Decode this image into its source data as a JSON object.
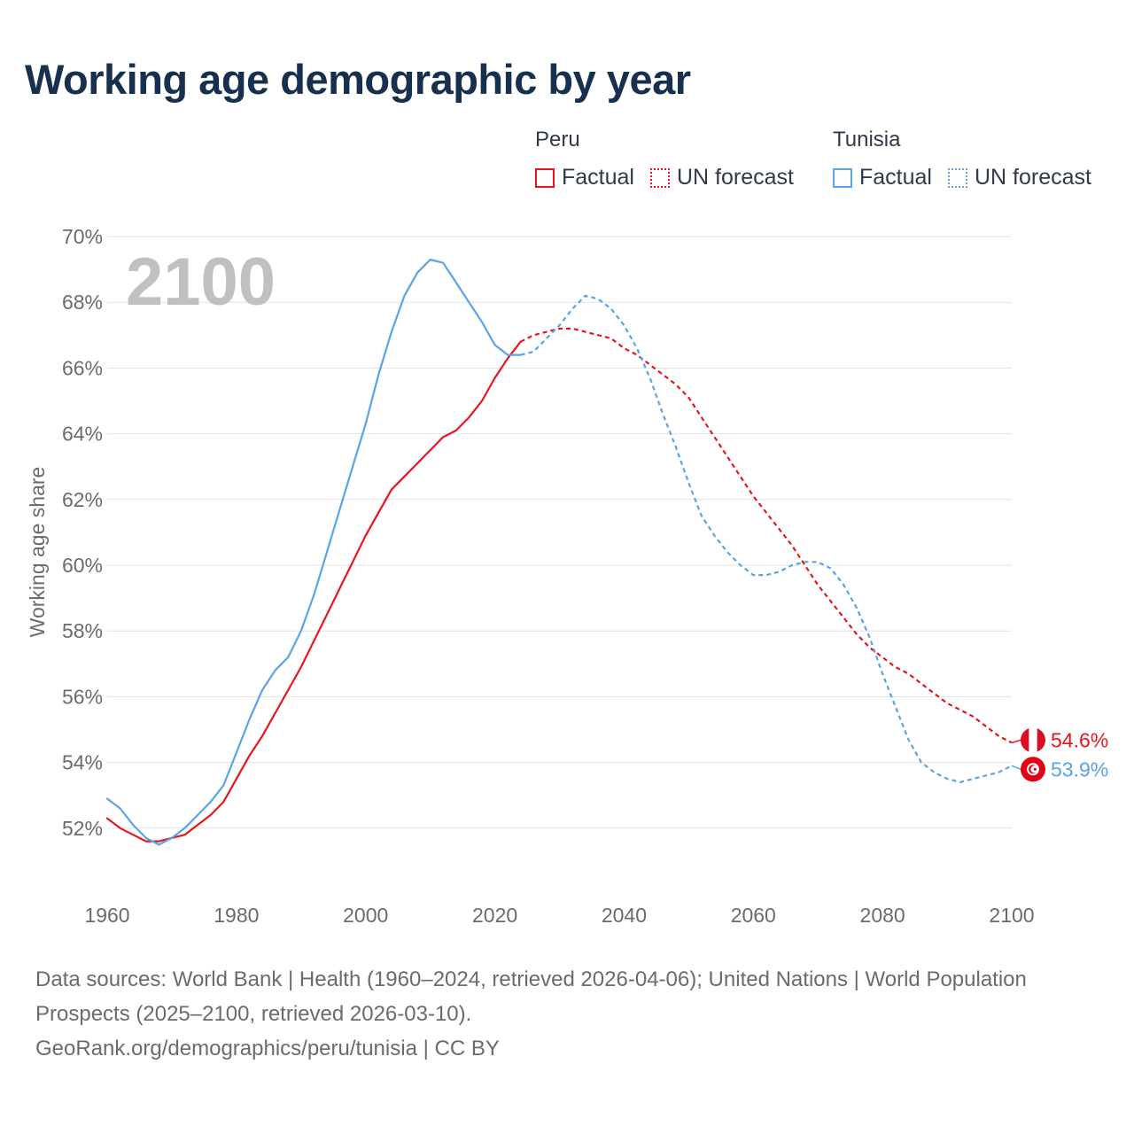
{
  "title": "Working age demographic by year",
  "legend": {
    "groups": [
      {
        "name": "Peru",
        "color": "#e8141c",
        "items": [
          {
            "label": "Factual",
            "style": "solid"
          },
          {
            "label": "UN forecast",
            "style": "dotted"
          }
        ]
      },
      {
        "name": "Tunisia",
        "color": "#5aa3e6",
        "items": [
          {
            "label": "Factual",
            "style": "solid"
          },
          {
            "label": "UN forecast",
            "style": "dotted"
          }
        ]
      }
    ]
  },
  "year_watermark": "2100",
  "chart_data": {
    "type": "line",
    "title": "Working age demographic by year",
    "xlabel": "",
    "ylabel": "Working age share",
    "xlim": [
      1960,
      2100
    ],
    "ylim": [
      50,
      70
    ],
    "x_ticks": [
      "1960",
      "1980",
      "2000",
      "2020",
      "2040",
      "2060",
      "2080",
      "2100"
    ],
    "x_tick_values": [
      1960,
      1980,
      2000,
      2020,
      2040,
      2060,
      2080,
      2100
    ],
    "y_ticks": [
      "52%",
      "54%",
      "56%",
      "58%",
      "60%",
      "62%",
      "64%",
      "66%",
      "68%",
      "70%"
    ],
    "y_tick_values": [
      52,
      54,
      56,
      58,
      60,
      62,
      64,
      66,
      68,
      70
    ],
    "grid": true,
    "factual_end_year": 2024,
    "series": [
      {
        "name": "Peru",
        "color": "#e8141c",
        "end_label": "54.6%",
        "flag": "peru-flag",
        "points": [
          [
            1960,
            52.3
          ],
          [
            1962,
            52.0
          ],
          [
            1964,
            51.8
          ],
          [
            1966,
            51.6
          ],
          [
            1968,
            51.6
          ],
          [
            1970,
            51.7
          ],
          [
            1972,
            51.8
          ],
          [
            1974,
            52.1
          ],
          [
            1976,
            52.4
          ],
          [
            1978,
            52.8
          ],
          [
            1980,
            53.5
          ],
          [
            1982,
            54.2
          ],
          [
            1984,
            54.8
          ],
          [
            1986,
            55.5
          ],
          [
            1988,
            56.2
          ],
          [
            1990,
            56.9
          ],
          [
            1992,
            57.7
          ],
          [
            1994,
            58.5
          ],
          [
            1996,
            59.3
          ],
          [
            1998,
            60.1
          ],
          [
            2000,
            60.9
          ],
          [
            2002,
            61.6
          ],
          [
            2004,
            62.3
          ],
          [
            2006,
            62.7
          ],
          [
            2008,
            63.1
          ],
          [
            2010,
            63.5
          ],
          [
            2012,
            63.9
          ],
          [
            2014,
            64.1
          ],
          [
            2016,
            64.5
          ],
          [
            2018,
            65.0
          ],
          [
            2020,
            65.7
          ],
          [
            2022,
            66.3
          ],
          [
            2024,
            66.8
          ],
          [
            2026,
            67.0
          ],
          [
            2028,
            67.1
          ],
          [
            2030,
            67.2
          ],
          [
            2032,
            67.2
          ],
          [
            2034,
            67.1
          ],
          [
            2036,
            67.0
          ],
          [
            2038,
            66.9
          ],
          [
            2040,
            66.6
          ],
          [
            2042,
            66.4
          ],
          [
            2044,
            66.1
          ],
          [
            2046,
            65.8
          ],
          [
            2048,
            65.5
          ],
          [
            2050,
            65.1
          ],
          [
            2052,
            64.5
          ],
          [
            2054,
            63.9
          ],
          [
            2056,
            63.3
          ],
          [
            2058,
            62.7
          ],
          [
            2060,
            62.1
          ],
          [
            2062,
            61.6
          ],
          [
            2064,
            61.1
          ],
          [
            2066,
            60.6
          ],
          [
            2068,
            60.0
          ],
          [
            2070,
            59.4
          ],
          [
            2072,
            58.9
          ],
          [
            2074,
            58.4
          ],
          [
            2076,
            57.9
          ],
          [
            2078,
            57.5
          ],
          [
            2080,
            57.2
          ],
          [
            2082,
            56.9
          ],
          [
            2084,
            56.7
          ],
          [
            2086,
            56.4
          ],
          [
            2088,
            56.1
          ],
          [
            2090,
            55.8
          ],
          [
            2092,
            55.6
          ],
          [
            2094,
            55.4
          ],
          [
            2096,
            55.1
          ],
          [
            2098,
            54.8
          ],
          [
            2100,
            54.6
          ]
        ]
      },
      {
        "name": "Tunisia",
        "color": "#5aa3e6",
        "end_label": "53.9%",
        "flag": "tunisia-flag",
        "points": [
          [
            1960,
            52.9
          ],
          [
            1962,
            52.6
          ],
          [
            1964,
            52.1
          ],
          [
            1966,
            51.7
          ],
          [
            1968,
            51.5
          ],
          [
            1970,
            51.7
          ],
          [
            1972,
            52.0
          ],
          [
            1974,
            52.4
          ],
          [
            1976,
            52.8
          ],
          [
            1978,
            53.3
          ],
          [
            1980,
            54.3
          ],
          [
            1982,
            55.3
          ],
          [
            1984,
            56.2
          ],
          [
            1986,
            56.8
          ],
          [
            1988,
            57.2
          ],
          [
            1990,
            58.0
          ],
          [
            1992,
            59.1
          ],
          [
            1994,
            60.4
          ],
          [
            1996,
            61.7
          ],
          [
            1998,
            63.0
          ],
          [
            2000,
            64.3
          ],
          [
            2002,
            65.8
          ],
          [
            2004,
            67.1
          ],
          [
            2006,
            68.2
          ],
          [
            2008,
            68.9
          ],
          [
            2010,
            69.3
          ],
          [
            2012,
            69.2
          ],
          [
            2014,
            68.6
          ],
          [
            2016,
            68.0
          ],
          [
            2018,
            67.4
          ],
          [
            2020,
            66.7
          ],
          [
            2022,
            66.4
          ],
          [
            2024,
            66.4
          ],
          [
            2026,
            66.5
          ],
          [
            2028,
            66.9
          ],
          [
            2030,
            67.3
          ],
          [
            2032,
            67.8
          ],
          [
            2034,
            68.2
          ],
          [
            2036,
            68.1
          ],
          [
            2038,
            67.8
          ],
          [
            2040,
            67.3
          ],
          [
            2042,
            66.6
          ],
          [
            2044,
            65.7
          ],
          [
            2046,
            64.6
          ],
          [
            2048,
            63.6
          ],
          [
            2050,
            62.5
          ],
          [
            2052,
            61.5
          ],
          [
            2054,
            60.9
          ],
          [
            2056,
            60.4
          ],
          [
            2058,
            60.0
          ],
          [
            2060,
            59.7
          ],
          [
            2062,
            59.7
          ],
          [
            2064,
            59.8
          ],
          [
            2066,
            60.0
          ],
          [
            2068,
            60.1
          ],
          [
            2070,
            60.1
          ],
          [
            2072,
            59.9
          ],
          [
            2074,
            59.4
          ],
          [
            2076,
            58.7
          ],
          [
            2078,
            57.8
          ],
          [
            2080,
            56.7
          ],
          [
            2082,
            55.7
          ],
          [
            2084,
            54.7
          ],
          [
            2086,
            54.0
          ],
          [
            2088,
            53.7
          ],
          [
            2090,
            53.5
          ],
          [
            2092,
            53.4
          ],
          [
            2094,
            53.5
          ],
          [
            2096,
            53.6
          ],
          [
            2098,
            53.7
          ],
          [
            2100,
            53.9
          ]
        ]
      }
    ]
  },
  "footer": {
    "sources": "Data sources: World Bank | Health (1960–2024, retrieved 2026-04-06); United Nations | World Population Prospects (2025–2100, retrieved 2026-03-10).",
    "credit": "GeoRank.org/demographics/peru/tunisia | CC BY"
  }
}
